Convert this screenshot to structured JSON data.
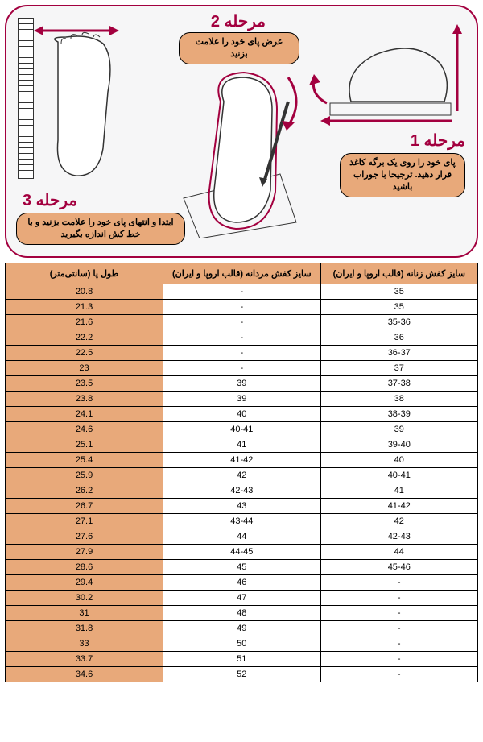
{
  "colors": {
    "brand": "#a3003f",
    "callout_bg": "#e8a97a",
    "header_bg": "#e8a97a",
    "length_col_bg": "#e8a97a",
    "panel_bg": "#f6f6f7",
    "border": "#000000"
  },
  "steps": {
    "s1": {
      "title": "مرحله 1",
      "text": "پای خود را روی یک برگه کاغذ قرار دهید.\nترجیحا با جوراب باشید"
    },
    "s2": {
      "title": "مرحله 2",
      "text": "عرض پای خود را علامت بزنید"
    },
    "s3": {
      "title": "مرحله 3",
      "text": "ابتدا و انتهای پای خود را علامت بزنید و با خط کش اندازه بگیرید"
    }
  },
  "table": {
    "headers": {
      "length": "طول پا (سانتی‌متر)",
      "men": "سایز کفش مردانه (قالب اروپا و ایران)",
      "women": "سایز کفش زنانه (قالب اروپا و ایران)"
    },
    "col_widths": {
      "length": "33.4%",
      "men": "33.3%",
      "women": "33.3%"
    },
    "rows": [
      {
        "length": "20.8",
        "men": "-",
        "women": "35"
      },
      {
        "length": "21.3",
        "men": "-",
        "women": "35"
      },
      {
        "length": "21.6",
        "men": "-",
        "women": "35-36"
      },
      {
        "length": "22.2",
        "men": "-",
        "women": "36"
      },
      {
        "length": "22.5",
        "men": "-",
        "women": "36-37"
      },
      {
        "length": "23",
        "men": "-",
        "women": "37"
      },
      {
        "length": "23.5",
        "men": "39",
        "women": "37-38"
      },
      {
        "length": "23.8",
        "men": "39",
        "women": "38"
      },
      {
        "length": "24.1",
        "men": "40",
        "women": "38-39"
      },
      {
        "length": "24.6",
        "men": "40-41",
        "women": "39"
      },
      {
        "length": "25.1",
        "men": "41",
        "women": "39-40"
      },
      {
        "length": "25.4",
        "men": "41-42",
        "women": "40"
      },
      {
        "length": "25.9",
        "men": "42",
        "women": "40-41"
      },
      {
        "length": "26.2",
        "men": "42-43",
        "women": "41"
      },
      {
        "length": "26.7",
        "men": "43",
        "women": "41-42"
      },
      {
        "length": "27.1",
        "men": "43-44",
        "women": "42"
      },
      {
        "length": "27.6",
        "men": "44",
        "women": "42-43"
      },
      {
        "length": "27.9",
        "men": "44-45",
        "women": "44"
      },
      {
        "length": "28.6",
        "men": "45",
        "women": "45-46"
      },
      {
        "length": "29.4",
        "men": "46",
        "women": "-"
      },
      {
        "length": "30.2",
        "men": "47",
        "women": "-"
      },
      {
        "length": "31",
        "men": "48",
        "women": "-"
      },
      {
        "length": "31.8",
        "men": "49",
        "women": "-"
      },
      {
        "length": "33",
        "men": "50",
        "women": "-"
      },
      {
        "length": "33.7",
        "men": "51",
        "women": "-"
      },
      {
        "length": "34.6",
        "men": "52",
        "women": "-"
      }
    ]
  }
}
